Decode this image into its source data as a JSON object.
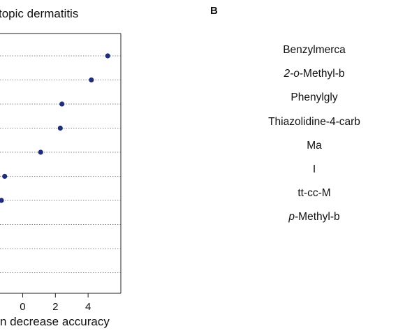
{
  "chart_data": [
    {
      "type": "scatter",
      "panel": "A",
      "title": "topic dermatitis",
      "xlabel": "n decrease accuracy",
      "x_ticks": [
        "0",
        "2",
        "4"
      ],
      "xlim": [
        -1.6,
        6.0
      ],
      "grid": "horizontal dotted",
      "points": [
        {
          "row": 1,
          "x": 5.2
        },
        {
          "row": 2,
          "x": 4.2
        },
        {
          "row": 3,
          "x": 2.4
        },
        {
          "row": 4,
          "x": 2.3
        },
        {
          "row": 5,
          "x": 1.1
        },
        {
          "row": 6,
          "x": -1.1
        },
        {
          "row": 7,
          "x": -1.3
        }
      ],
      "row_count": 10,
      "marker_color": "#1f2d7a"
    },
    {
      "type": "scatter",
      "panel": "B",
      "panel_label": "B",
      "category_labels": [
        {
          "text": "Benzylmerca",
          "italic_prefix": ""
        },
        {
          "text": "-Methyl-b",
          "italic_prefix": "2-o"
        },
        {
          "text": "Phenylgly",
          "italic_prefix": ""
        },
        {
          "text": "Thiazolidine-4-carb",
          "italic_prefix": ""
        },
        {
          "text": "Ma",
          "italic_prefix": ""
        },
        {
          "text": "I",
          "italic_prefix": ""
        },
        {
          "text": "tt-cc-M",
          "italic_prefix": ""
        },
        {
          "text": "-Methyl-b",
          "italic_prefix": "p"
        }
      ]
    }
  ]
}
